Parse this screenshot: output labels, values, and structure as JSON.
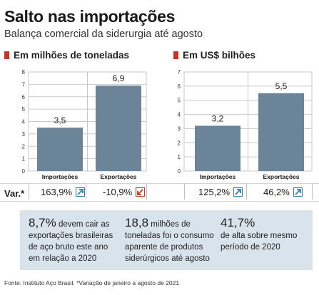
{
  "header": {
    "title": "Salto nas importações",
    "subtitle": "Balança comercial da siderurgia até agosto"
  },
  "colors": {
    "bar": "#6b8498",
    "accent_red": "#c8361f",
    "arrow_up": "#2f7fb0",
    "arrow_down": "#c8361f",
    "info_bg": "#d9e3ec"
  },
  "chart_data": [
    {
      "type": "bar",
      "title": "Em milhões de toneladas",
      "categories": [
        "Importações",
        "Exportações"
      ],
      "values": [
        3.5,
        6.9
      ],
      "value_labels": [
        "3,5",
        "6,9"
      ],
      "ylim": [
        0,
        8
      ],
      "yticks": [
        0,
        1,
        2,
        3,
        4,
        5,
        6,
        7,
        8
      ],
      "ytick_labels": [
        "0",
        "1",
        "2",
        "3",
        "4",
        "5",
        "6",
        "7",
        "8"
      ],
      "grid": true,
      "variation": [
        {
          "text": "163,9%",
          "direction": "up"
        },
        {
          "text": "-10,9%",
          "direction": "down"
        }
      ]
    },
    {
      "type": "bar",
      "title": "Em US$ bilhões",
      "categories": [
        "Importações",
        "Exportações"
      ],
      "values": [
        3.2,
        5.5
      ],
      "value_labels": [
        "3,2",
        "5,5"
      ],
      "ylim": [
        0,
        7
      ],
      "yticks": [
        0,
        1,
        2,
        3,
        4,
        5,
        6,
        7
      ],
      "ytick_labels": [
        "0",
        "1",
        "2",
        "3",
        "4",
        "5",
        "6",
        "7"
      ],
      "grid": true,
      "variation": [
        {
          "text": "125,2%",
          "direction": "up"
        },
        {
          "text": "46,2%",
          "direction": "up"
        }
      ]
    }
  ],
  "variation_label": "Var.*",
  "info": [
    {
      "big": "8,7%",
      "text": " devem cair as exportações brasileiras de aço bruto este ano em relação a 2020"
    },
    {
      "big": "18,8",
      "text": " milhões de toneladas foi o consumo aparente de produtos siderúrgicos até agosto"
    },
    {
      "big": "41,7%",
      "text": " de alta sobre mesmo período de 2020"
    }
  ],
  "source": "Fonte: Instituto Aço Brasil. *Variação de janeiro a agosto de 2021"
}
